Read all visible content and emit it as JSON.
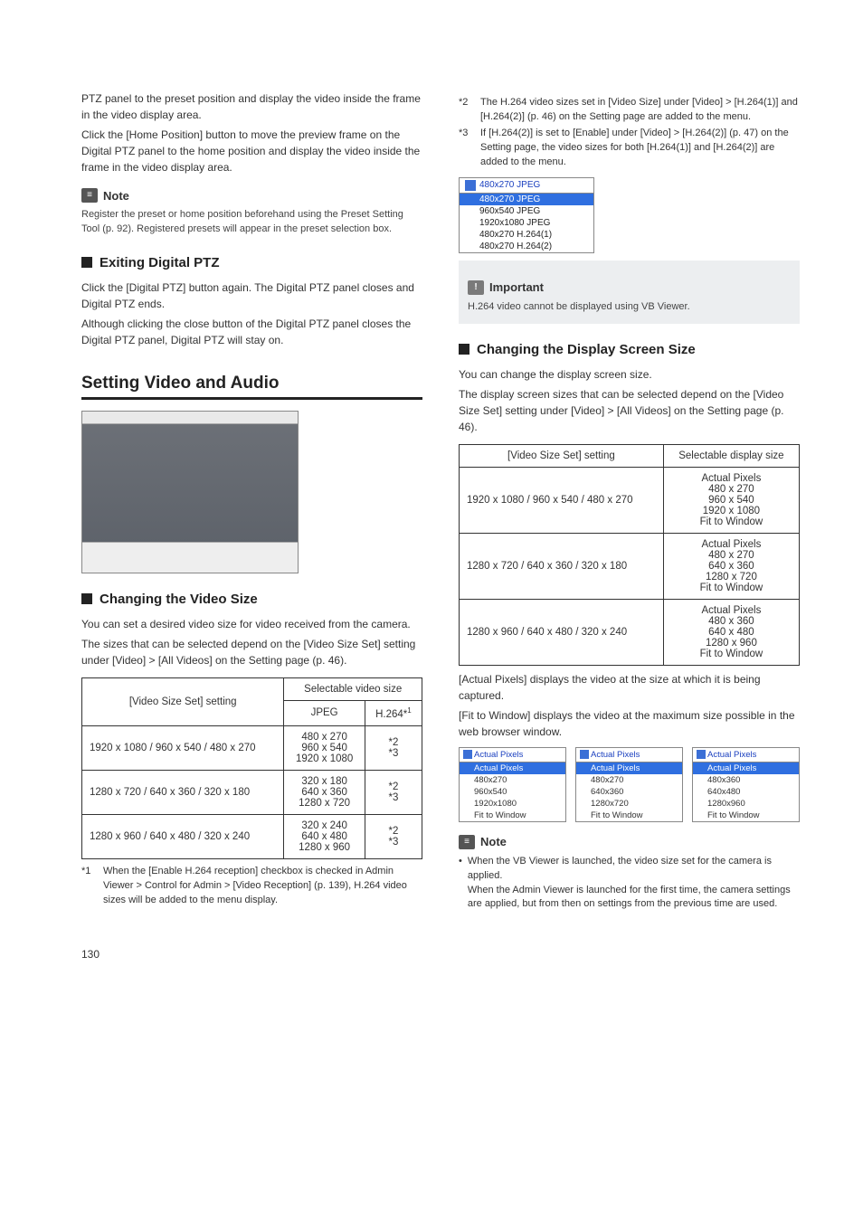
{
  "left": {
    "intro_p1": "PTZ panel to the preset position and display the video inside the frame in the video display area.",
    "intro_p2": "Click the [Home Position] button to move the preview frame on the Digital PTZ panel to the home position and display the video inside the frame in the video display area.",
    "note_label": "Note",
    "note_text": "Register the preset or home position beforehand using the Preset Setting Tool (p. 92). Registered presets will appear in the preset selection box.",
    "h_exit": "Exiting Digital PTZ",
    "exit_p1": "Click the [Digital PTZ] button again. The Digital PTZ panel closes and Digital PTZ ends.",
    "exit_p2": "Although clicking the close button of the Digital PTZ panel closes the Digital PTZ panel, Digital PTZ will stay on.",
    "h_setting": "Setting Video and Audio",
    "h_change_vid": "Changing the Video Size",
    "cv_p1": "You can set a desired video size for video received from the camera.",
    "cv_p2": "The sizes that can be selected depend on the [Video Size Set] setting under [Video] > [All Videos] on the Setting page (p. 46).",
    "table1": {
      "head_setting": "[Video Size Set] setting",
      "head_sel": "Selectable video size",
      "head_jpeg": "JPEG",
      "head_h264": "H.264*",
      "head_h264_sup": "1",
      "rows": [
        {
          "setting": "1920 x 1080 / 960 x 540 / 480 x 270",
          "jpeg": "480 x 270\n960 x 540\n1920 x 1080",
          "h264": "*2\n*3"
        },
        {
          "setting": "1280 x 720 / 640 x 360 / 320 x 180",
          "jpeg": "320 x 180\n640 x 360\n1280 x 720",
          "h264": "*2\n*3"
        },
        {
          "setting": "1280 x 960 / 640 x 480 / 320 x 240",
          "jpeg": "320 x 240\n640 x 480\n1280 x 960",
          "h264": "*2\n*3"
        }
      ]
    },
    "fn1_tag": "*1",
    "fn1": "When the [Enable H.264 reception] checkbox is checked in Admin Viewer > Control for Admin > [Video Reception] (p. 139), H.264 video sizes will be added to the menu display."
  },
  "right": {
    "fn2_tag": "*2",
    "fn2": "The H.264 video sizes set in [Video Size] under [Video] > [H.264(1)] and [H.264(2)] (p. 46) on the Setting page are added to the menu.",
    "fn3_tag": "*3",
    "fn3": "If [H.264(2)] is set to [Enable] under [Video] > [H.264(2)] (p. 47) on the Setting page, the video sizes for both [H.264(1)] and [H.264(2)] are added to the menu.",
    "dd1": {
      "selected": "480x270 JPEG",
      "hl": "480x270 JPEG",
      "opts": [
        "960x540 JPEG",
        "1920x1080 JPEG",
        "480x270 H.264(1)",
        "480x270 H.264(2)"
      ]
    },
    "important_label": "Important",
    "important_text": "H.264 video cannot be displayed using VB Viewer.",
    "h_disp": "Changing the Display Screen Size",
    "disp_p1": "You can change the display screen size.",
    "disp_p2": "The display screen sizes that can be selected depend on the [Video Size Set] setting under [Video] > [All Videos] on the Setting page (p. 46).",
    "table2": {
      "head_setting": "[Video Size Set] setting",
      "head_sel": "Selectable display size",
      "rows": [
        {
          "setting": "1920 x 1080 / 960 x 540 / 480 x 270",
          "sel": "Actual Pixels\n480 x 270\n960 x 540\n1920 x 1080\nFit to Window"
        },
        {
          "setting": "1280 x 720 / 640 x 360 / 320 x 180",
          "sel": "Actual Pixels\n480 x 270\n640 x 360\n1280 x 720\nFit to Window"
        },
        {
          "setting": "1280 x 960 / 640 x 480 / 320 x 240",
          "sel": "Actual Pixels\n480 x 360\n640 x 480\n1280 x 960\nFit to Window"
        }
      ]
    },
    "after_p1": "[Actual Pixels] displays the video at the size at which it is being captured.",
    "after_p2": "[Fit to Window] displays the video at the maximum size possible in the web browser window.",
    "triple": [
      {
        "sel": "Actual Pixels",
        "hl": "Actual Pixels",
        "opts": [
          "480x270",
          "960x540",
          "1920x1080",
          "Fit to Window"
        ]
      },
      {
        "sel": "Actual Pixels",
        "hl": "Actual Pixels",
        "opts": [
          "480x270",
          "640x360",
          "1280x720",
          "Fit to Window"
        ]
      },
      {
        "sel": "Actual Pixels",
        "hl": "Actual Pixels",
        "opts": [
          "480x360",
          "640x480",
          "1280x960",
          "Fit to Window"
        ]
      }
    ],
    "note_label": "Note",
    "note_bullet": "When the VB Viewer is launched, the video size set for the camera is applied.\nWhen the Admin Viewer is launched for the first time, the camera settings are applied, but from then on settings from the previous time are used."
  },
  "page_number": "130"
}
